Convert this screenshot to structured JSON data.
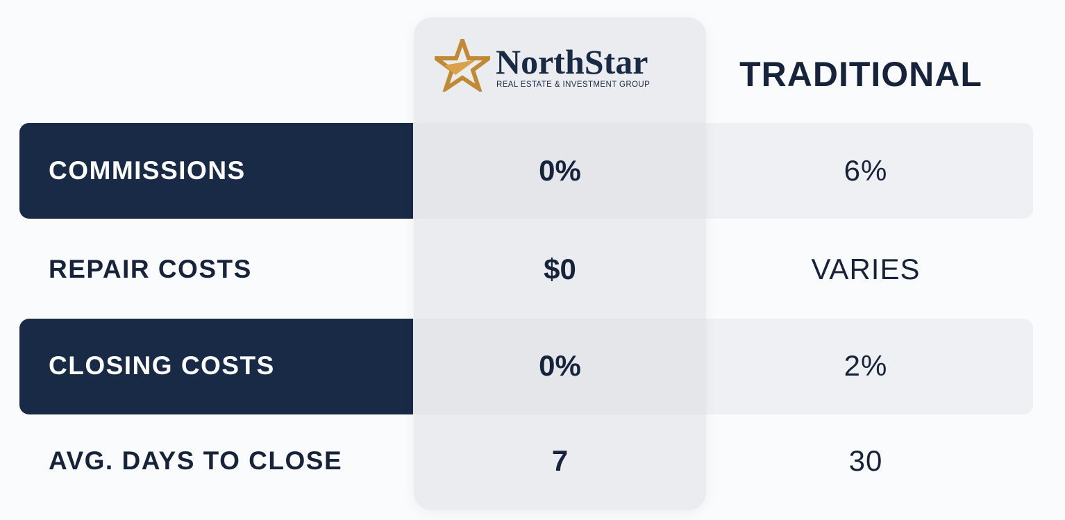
{
  "header": {
    "brand_name": "NorthStar",
    "brand_tagline": "REAL ESTATE & INVESTMENT GROUP",
    "traditional": "TRADITIONAL"
  },
  "rows": [
    [
      "COMMISSIONS",
      "0%",
      "6%"
    ],
    [
      "REPAIR COSTS",
      "$0",
      "VARIES"
    ],
    [
      "CLOSING COSTS",
      "0%",
      "2%"
    ],
    [
      "AVG. DAYS TO CLOSE",
      "7",
      "30"
    ]
  ]
}
